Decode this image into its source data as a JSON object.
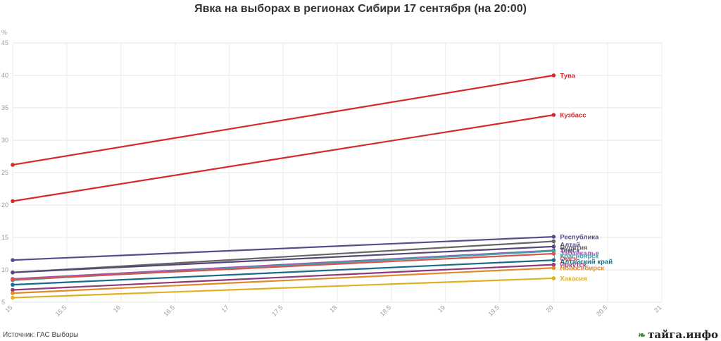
{
  "title": "Явка на выборах в регионах Сибири 17 сентября (на 20:00)",
  "source": "Источник: ГАС Выборы",
  "brand": "тайга.инфо",
  "chart_data": {
    "type": "line",
    "title": "Явка на выборах в регионах Сибири 17 сентября (на 20:00)",
    "xlabel": "",
    "ylabel": "%",
    "xlim": [
      15,
      21
    ],
    "ylim": [
      5,
      45
    ],
    "xticks": [
      "15",
      "15.5",
      "16",
      "16.5",
      "17",
      "17.5",
      "18",
      "18.5",
      "19",
      "19.5",
      "20",
      "20.5",
      "21"
    ],
    "yticks": [
      "5",
      "10",
      "15",
      "20",
      "25",
      "30",
      "35",
      "40",
      "45"
    ],
    "grid": true,
    "legend": "none",
    "x": [
      15,
      20
    ],
    "series": [
      {
        "name": "Тува",
        "values": [
          26.2,
          40.0
        ],
        "color": "#d42a2a"
      },
      {
        "name": "Кузбасс",
        "values": [
          20.6,
          33.9
        ],
        "color": "#d42a2a"
      },
      {
        "name": "Республика Алтай",
        "values": [
          11.5,
          15.1
        ],
        "color": "#5a4a8a"
      },
      {
        "name": "Бурятия",
        "values": [
          9.6,
          14.4
        ],
        "color": "#666666"
      },
      {
        "name": "Томск",
        "values": [
          9.6,
          13.6
        ],
        "color": "#574775"
      },
      {
        "name": "Забайкалье",
        "values": [
          8.6,
          13.0
        ],
        "color": "#9b59b6"
      },
      {
        "name": "Красноярск",
        "values": [
          8.4,
          12.9
        ],
        "color": "#3aa8a8"
      },
      {
        "name": "Омск",
        "values": [
          8.5,
          12.5
        ],
        "color": "#d9534f"
      },
      {
        "name": "Алтайский край",
        "values": [
          7.7,
          11.5
        ],
        "color": "#1a6a8a"
      },
      {
        "name": "Иркутск",
        "values": [
          6.9,
          10.8
        ],
        "color": "#8e3a7a"
      },
      {
        "name": "Новосибирск",
        "values": [
          6.4,
          10.3
        ],
        "color": "#e08a2a"
      },
      {
        "name": "Хакасия",
        "values": [
          5.7,
          8.7
        ],
        "color": "#e0b020"
      }
    ]
  }
}
